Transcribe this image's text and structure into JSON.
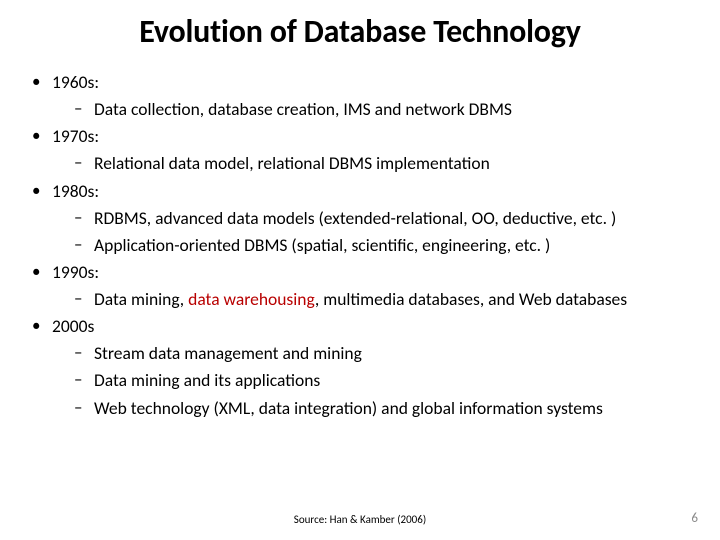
{
  "title": "Evolution of Database Technology",
  "colors": {
    "text": "#000000",
    "highlight": "#b80000",
    "pagenum": "#8a8a8a",
    "background": "#ffffff"
  },
  "typography": {
    "title_fontsize_pt": 32,
    "body_fontsize_pt": 17.5,
    "footer_fontsize_pt": 11,
    "font_family": "Calibri"
  },
  "bullets": [
    {
      "label": "1960s:",
      "items": [
        {
          "text": "Data collection, database creation, IMS and network DBMS"
        }
      ]
    },
    {
      "label": "1970s:",
      "items": [
        {
          "text": "Relational data model, relational DBMS implementation"
        }
      ]
    },
    {
      "label": "1980s:",
      "items": [
        {
          "text": "RDBMS, advanced data models (extended-relational, OO, deductive, etc. )"
        },
        {
          "text": "Application-oriented DBMS (spatial, scientific, engineering, etc. )"
        }
      ]
    },
    {
      "label": "1990s:",
      "items": [
        {
          "pre": "Data mining, ",
          "hl": "data warehousing",
          "post": ", multimedia databases, and Web databases"
        }
      ]
    },
    {
      "label": "2000s",
      "items": [
        {
          "text": "Stream data management and mining"
        },
        {
          "text": "Data mining and its applications"
        },
        {
          "text": "Web technology (XML, data integration) and global information systems"
        }
      ]
    }
  ],
  "footer": "Source: Han & Kamber (2006)",
  "pagenum": "6"
}
